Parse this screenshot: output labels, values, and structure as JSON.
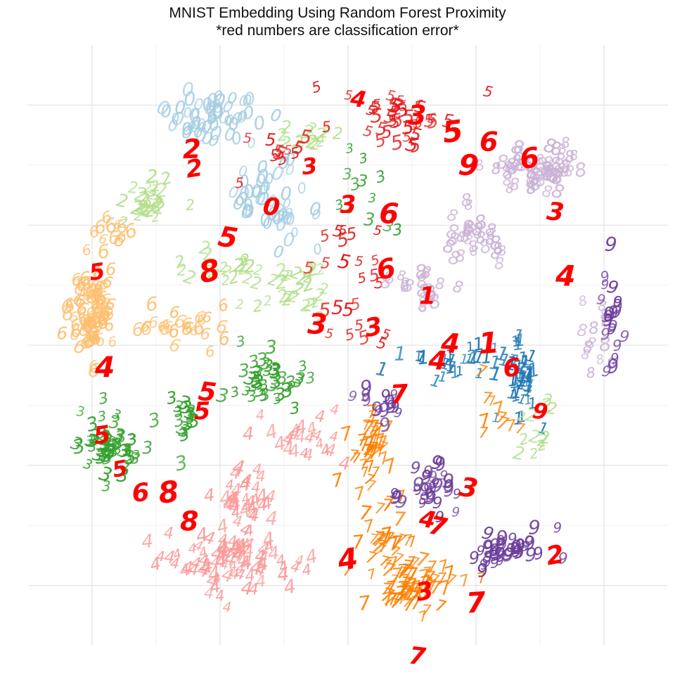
{
  "title": "MNIST Embedding Using Random Forest Proximity",
  "subtitle": "*red numbers are classification error*",
  "colors": {
    "background": "#ffffff",
    "grid_major": "#dedede",
    "grid_minor": "#efefef",
    "error": "#ff0000",
    "0": "#a6cee3",
    "1": "#1f78b4",
    "2": "#b2df8a",
    "3": "#33a02c",
    "4": "#fb9a99",
    "5": "#e31a1c",
    "6": "#fdbf6f",
    "7": "#ff7f00",
    "8": "#cab2d6",
    "9": "#6a3d9a"
  },
  "chart_data": {
    "type": "scatter",
    "title": "MNIST Embedding Using Random Forest Proximity",
    "subtitle": "*red numbers are classification error*",
    "xlabel": "",
    "ylabel": "",
    "xlim": [
      -1.25,
      1.25
    ],
    "ylim": [
      -1.25,
      1.25
    ],
    "grid": true,
    "axis_tick_labels": false,
    "legend": "none",
    "points_note": "each point is a handwritten MNIST digit drawn at its 2D embedding position; red digits are misclassified",
    "clusters": [
      {
        "digit": "0",
        "n": 60,
        "cx": -0.52,
        "cy": 0.95,
        "sx": 0.09,
        "sy": 0.05
      },
      {
        "digit": "0",
        "n": 40,
        "cx": -0.33,
        "cy": 0.65,
        "sx": 0.07,
        "sy": 0.08
      },
      {
        "digit": "0",
        "n": 12,
        "cx": -0.22,
        "cy": 0.5,
        "sx": 0.05,
        "sy": 0.05
      },
      {
        "digit": "1",
        "n": 40,
        "cx": 0.68,
        "cy": -0.15,
        "sx": 0.03,
        "sy": 0.1
      },
      {
        "digit": "1",
        "n": 32,
        "cx": 0.44,
        "cy": -0.08,
        "sx": 0.14,
        "sy": 0.03
      },
      {
        "digit": "2",
        "n": 28,
        "cx": -0.78,
        "cy": 0.6,
        "sx": 0.05,
        "sy": 0.05
      },
      {
        "digit": "2",
        "n": 22,
        "cx": -0.5,
        "cy": 0.3,
        "sx": 0.1,
        "sy": 0.04
      },
      {
        "digit": "2",
        "n": 26,
        "cx": -0.22,
        "cy": 0.22,
        "sx": 0.08,
        "sy": 0.06
      },
      {
        "digit": "2",
        "n": 14,
        "cx": -0.15,
        "cy": 0.87,
        "sx": 0.06,
        "sy": 0.03
      },
      {
        "digit": "2",
        "n": 12,
        "cx": 0.75,
        "cy": -0.35,
        "sx": 0.05,
        "sy": 0.05
      },
      {
        "digit": "3",
        "n": 60,
        "cx": -0.95,
        "cy": -0.42,
        "sx": 0.08,
        "sy": 0.07
      },
      {
        "digit": "3",
        "n": 38,
        "cx": -0.3,
        "cy": -0.14,
        "sx": 0.09,
        "sy": 0.06
      },
      {
        "digit": "3",
        "n": 16,
        "cx": -0.65,
        "cy": -0.32,
        "sx": 0.04,
        "sy": 0.06
      },
      {
        "digit": "3",
        "n": 12,
        "cx": 0.1,
        "cy": 0.7,
        "sx": 0.07,
        "sy": 0.08
      },
      {
        "digit": "4",
        "n": 85,
        "cx": -0.45,
        "cy": -0.9,
        "sx": 0.15,
        "sy": 0.06
      },
      {
        "digit": "4",
        "n": 34,
        "cx": -0.4,
        "cy": -0.65,
        "sx": 0.06,
        "sy": 0.06
      },
      {
        "digit": "4",
        "n": 24,
        "cx": -0.2,
        "cy": -0.4,
        "sx": 0.09,
        "sy": 0.06
      },
      {
        "digit": "5",
        "n": 40,
        "cx": 0.2,
        "cy": 0.92,
        "sx": 0.14,
        "sy": 0.07
      },
      {
        "digit": "5",
        "n": 24,
        "cx": 0.02,
        "cy": 0.25,
        "sx": 0.08,
        "sy": 0.15
      },
      {
        "digit": "5",
        "n": 10,
        "cx": -0.27,
        "cy": 0.8,
        "sx": 0.07,
        "sy": 0.06
      },
      {
        "digit": "6",
        "n": 90,
        "cx": -1.0,
        "cy": 0.15,
        "sx": 0.04,
        "sy": 0.1
      },
      {
        "digit": "6",
        "n": 26,
        "cx": -0.65,
        "cy": 0.07,
        "sx": 0.1,
        "sy": 0.04
      },
      {
        "digit": "6",
        "n": 12,
        "cx": -0.92,
        "cy": 0.46,
        "sx": 0.05,
        "sy": 0.05
      },
      {
        "digit": "7",
        "n": 70,
        "cx": 0.25,
        "cy": -1.0,
        "sx": 0.08,
        "sy": 0.05
      },
      {
        "digit": "7",
        "n": 40,
        "cx": 0.08,
        "cy": -0.45,
        "sx": 0.04,
        "sy": 0.1
      },
      {
        "digit": "7",
        "n": 30,
        "cx": 0.13,
        "cy": -0.8,
        "sx": 0.06,
        "sy": 0.08
      },
      {
        "digit": "7",
        "n": 10,
        "cx": 0.6,
        "cy": -0.3,
        "sx": 0.06,
        "sy": 0.06
      },
      {
        "digit": "8",
        "n": 60,
        "cx": 0.75,
        "cy": 0.72,
        "sx": 0.09,
        "sy": 0.05
      },
      {
        "digit": "8",
        "n": 30,
        "cx": 0.5,
        "cy": 0.45,
        "sx": 0.08,
        "sy": 0.06
      },
      {
        "digit": "8",
        "n": 20,
        "cx": 0.3,
        "cy": 0.25,
        "sx": 0.06,
        "sy": 0.05
      },
      {
        "digit": "8",
        "n": 14,
        "cx": 0.98,
        "cy": 0.05,
        "sx": 0.04,
        "sy": 0.1
      },
      {
        "digit": "9",
        "n": 40,
        "cx": 0.62,
        "cy": -0.85,
        "sx": 0.08,
        "sy": 0.05
      },
      {
        "digit": "9",
        "n": 30,
        "cx": 0.3,
        "cy": -0.6,
        "sx": 0.08,
        "sy": 0.07
      },
      {
        "digit": "9",
        "n": 20,
        "cx": 1.03,
        "cy": 0.1,
        "sx": 0.02,
        "sy": 0.12
      },
      {
        "digit": "9",
        "n": 14,
        "cx": 0.15,
        "cy": -0.25,
        "sx": 0.05,
        "sy": 0.04
      }
    ],
    "errors": [
      {
        "label": "5",
        "x": -0.98,
        "y": 0.3
      },
      {
        "label": "8",
        "x": -0.54,
        "y": 0.3
      },
      {
        "label": "4",
        "x": -0.95,
        "y": -0.1
      },
      {
        "label": "5",
        "x": -0.55,
        "y": -0.2
      },
      {
        "label": "5",
        "x": -0.96,
        "y": -0.38
      },
      {
        "label": "5",
        "x": -0.89,
        "y": -0.52
      },
      {
        "label": "6",
        "x": -0.81,
        "y": -0.62
      },
      {
        "label": "8",
        "x": -0.7,
        "y": -0.62
      },
      {
        "label": "8",
        "x": -0.62,
        "y": -0.74
      },
      {
        "label": "2",
        "x": -0.61,
        "y": 0.81
      },
      {
        "label": "2",
        "x": -0.6,
        "y": 0.73
      },
      {
        "label": "3",
        "x": -0.15,
        "y": 0.74
      },
      {
        "label": "0",
        "x": -0.3,
        "y": 0.57
      },
      {
        "label": "3",
        "x": 0.0,
        "y": 0.58
      },
      {
        "label": "6",
        "x": 0.16,
        "y": 0.54
      },
      {
        "label": "5",
        "x": -0.47,
        "y": 0.44
      },
      {
        "label": "6",
        "x": 0.15,
        "y": 0.31
      },
      {
        "label": "3",
        "x": -0.12,
        "y": 0.08
      },
      {
        "label": "3",
        "x": 0.1,
        "y": 0.07
      },
      {
        "label": "1",
        "x": 0.31,
        "y": 0.2
      },
      {
        "label": "4",
        "x": 0.4,
        "y": 0.0
      },
      {
        "label": "1",
        "x": 0.55,
        "y": 0.0
      },
      {
        "label": "4",
        "x": 0.85,
        "y": 0.28
      },
      {
        "label": "3",
        "x": 0.81,
        "y": 0.55
      },
      {
        "label": "6",
        "x": 0.71,
        "y": 0.77
      },
      {
        "label": "9",
        "x": 0.47,
        "y": 0.74
      },
      {
        "label": "5",
        "x": 0.41,
        "y": 0.88
      },
      {
        "label": "6",
        "x": 0.55,
        "y": 0.84
      },
      {
        "label": "4",
        "x": 0.04,
        "y": 1.02
      },
      {
        "label": "3",
        "x": 0.27,
        "y": 0.95
      },
      {
        "label": "4",
        "x": 0.35,
        "y": -0.07
      },
      {
        "label": "6",
        "x": 0.64,
        "y": -0.1
      },
      {
        "label": "9",
        "x": 0.75,
        "y": -0.28
      },
      {
        "label": "7",
        "x": 0.2,
        "y": -0.21
      },
      {
        "label": "3",
        "x": 0.47,
        "y": -0.6
      },
      {
        "label": "4",
        "x": 0.31,
        "y": -0.73
      },
      {
        "label": "7",
        "x": 0.35,
        "y": -0.76
      },
      {
        "label": "4",
        "x": 0.0,
        "y": -0.9
      },
      {
        "label": "3",
        "x": 0.3,
        "y": -1.03
      },
      {
        "label": "7",
        "x": 0.5,
        "y": -1.08
      },
      {
        "label": "7",
        "x": 0.27,
        "y": -1.3
      },
      {
        "label": "2",
        "x": 0.81,
        "y": -0.88
      },
      {
        "label": "5",
        "x": -0.57,
        "y": -0.28
      }
    ]
  }
}
